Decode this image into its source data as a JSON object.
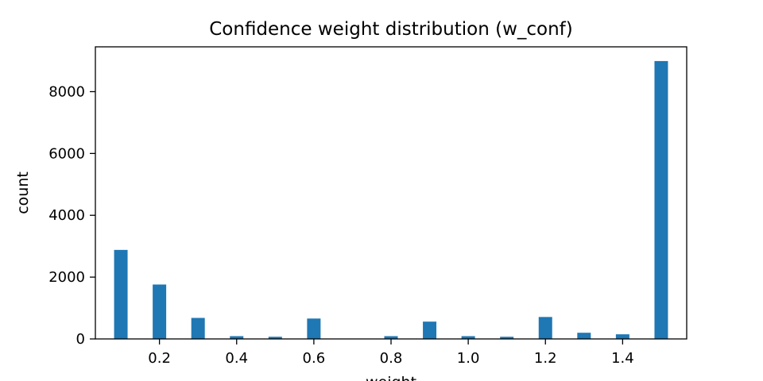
{
  "chart_data": {
    "type": "bar",
    "title": "Confidence weight distribution (w_conf)",
    "xlabel": "weight",
    "ylabel": "count",
    "xlim": [
      0.034,
      1.566
    ],
    "ylim": [
      0,
      9450
    ],
    "xticks": [
      {
        "value": 0.2,
        "label": "0.2"
      },
      {
        "value": 0.4,
        "label": "0.4"
      },
      {
        "value": 0.6,
        "label": "0.6"
      },
      {
        "value": 0.8,
        "label": "0.8"
      },
      {
        "value": 1.0,
        "label": "1.0"
      },
      {
        "value": 1.2,
        "label": "1.2"
      },
      {
        "value": 1.4,
        "label": "1.4"
      }
    ],
    "yticks": [
      {
        "value": 0,
        "label": "0"
      },
      {
        "value": 2000,
        "label": "2000"
      },
      {
        "value": 4000,
        "label": "4000"
      },
      {
        "value": 6000,
        "label": "6000"
      },
      {
        "value": 8000,
        "label": "8000"
      }
    ],
    "bar_width": 0.035,
    "bars": [
      {
        "x": 0.1,
        "value": 2880
      },
      {
        "x": 0.2,
        "value": 1760
      },
      {
        "x": 0.3,
        "value": 680
      },
      {
        "x": 0.4,
        "value": 90
      },
      {
        "x": 0.5,
        "value": 70
      },
      {
        "x": 0.6,
        "value": 660
      },
      {
        "x": 0.8,
        "value": 90
      },
      {
        "x": 0.9,
        "value": 560
      },
      {
        "x": 1.0,
        "value": 90
      },
      {
        "x": 1.1,
        "value": 70
      },
      {
        "x": 1.2,
        "value": 710
      },
      {
        "x": 1.3,
        "value": 200
      },
      {
        "x": 1.4,
        "value": 150
      },
      {
        "x": 1.5,
        "value": 8990
      }
    ],
    "bar_color": "#1f77b4",
    "grid": false,
    "legend": "none"
  }
}
